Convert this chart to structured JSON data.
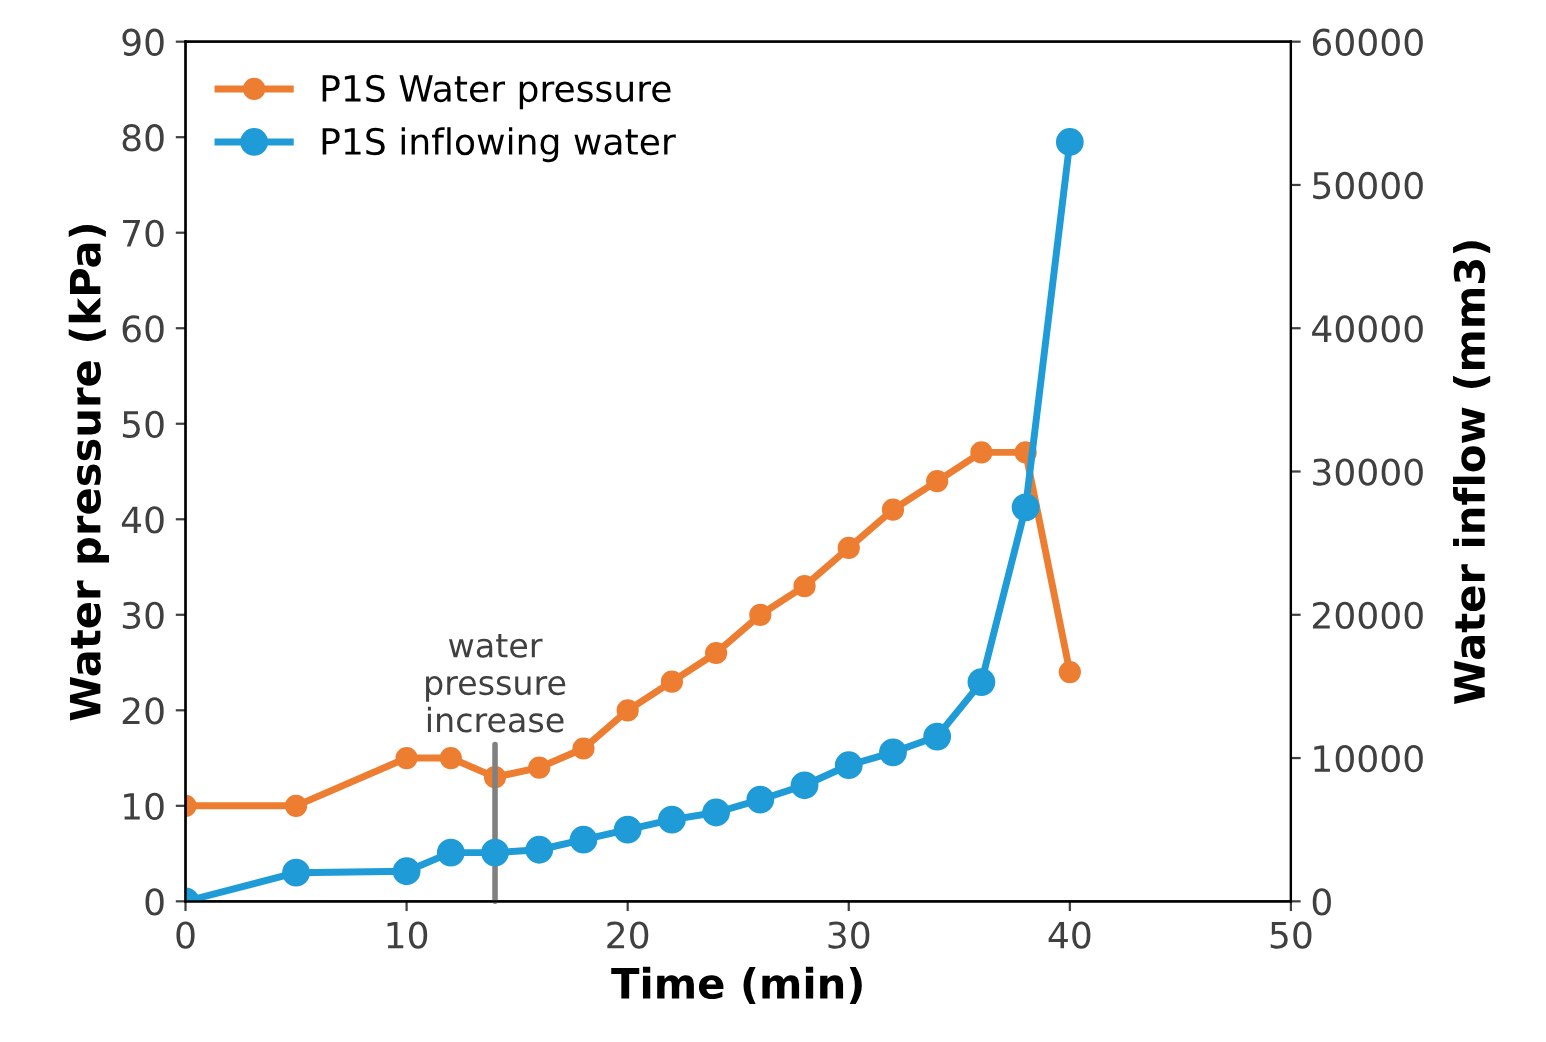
{
  "chart_data": {
    "type": "line",
    "xlabel": "Time (min)",
    "ylabel": "Water pressure (kPa)",
    "y2label": "Water inflow (mm3)",
    "xlim": [
      0,
      50
    ],
    "xticks": [
      0,
      10,
      20,
      30,
      40,
      50
    ],
    "ylim": [
      0,
      90
    ],
    "yticks": [
      0,
      10,
      20,
      30,
      40,
      50,
      60,
      70,
      80,
      90
    ],
    "y2lim": [
      0,
      60000
    ],
    "y2ticks": [
      0,
      10000,
      20000,
      30000,
      40000,
      50000,
      60000
    ],
    "series": [
      {
        "name": "P1S Water pressure",
        "color": "#ed7d31",
        "x": [
          0,
          5,
          10,
          12,
          14,
          16,
          18,
          20,
          22,
          24,
          26,
          28,
          30,
          32,
          34,
          36,
          38,
          40
        ],
        "values": [
          10,
          10,
          15,
          15,
          13,
          14,
          16,
          20,
          23,
          26,
          30,
          33,
          37,
          41,
          44,
          47,
          47,
          24
        ]
      },
      {
        "name": "P1S inflowing water",
        "color": "#1f9bd7",
        "axis": "y2",
        "x": [
          0,
          5,
          10,
          12,
          14,
          16,
          18,
          20,
          22,
          24,
          26,
          28,
          30,
          32,
          34,
          36,
          38,
          40
        ],
        "values": [
          0,
          2000,
          2100,
          3400,
          3400,
          3600,
          4300,
          5000,
          5700,
          6200,
          7100,
          8100,
          9500,
          10400,
          11500,
          15300,
          27500,
          53000
        ]
      }
    ],
    "annotations": [
      {
        "text": "water\npressure\nincrease",
        "x": 14,
        "y": 13
      }
    ],
    "marker": "circle",
    "line_style": "solid",
    "legend": "top left",
    "grid": false
  }
}
